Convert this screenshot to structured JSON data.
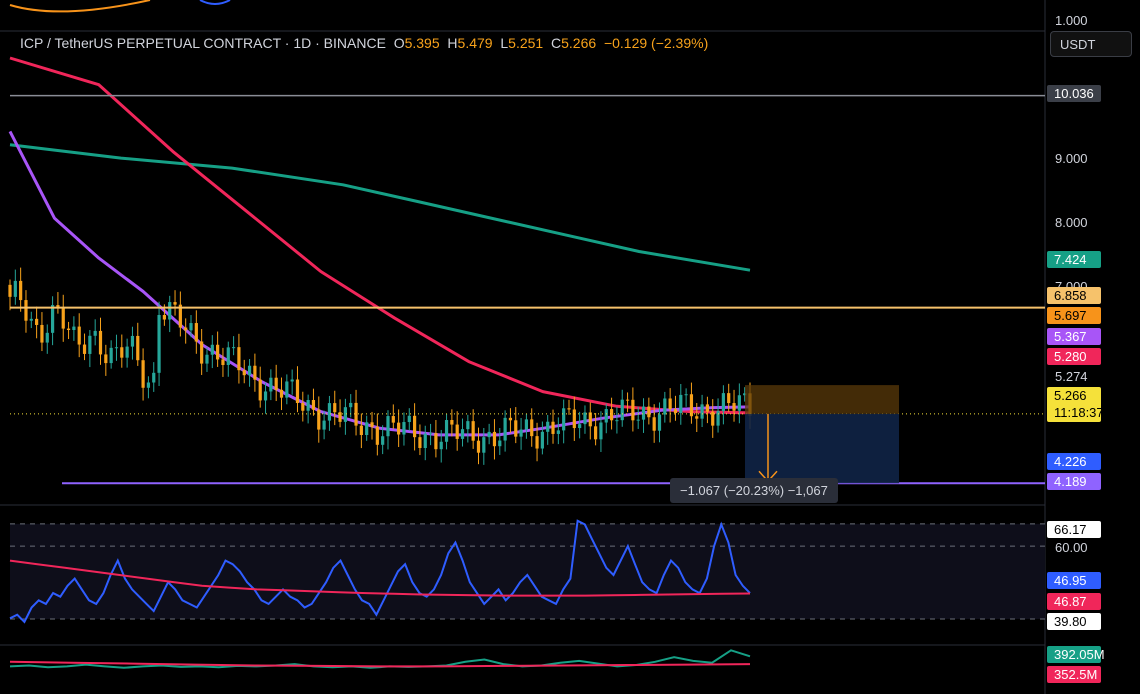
{
  "header": {
    "symbol": "ICP / TetherUS PERPETUAL CONTRACT · 1D · BINANCE",
    "open_label": "O",
    "open": "5.395",
    "high_label": "H",
    "high": "5.479",
    "low_label": "L",
    "low": "5.251",
    "close_label": "C",
    "close": "5.266",
    "change": "−0.129 (−2.39%)"
  },
  "currency_button": "USDT",
  "price_axis": {
    "top_label": "1.000",
    "ticks": [
      "9.000",
      "8.000",
      "7.000"
    ],
    "labels": {
      "resistance": "10.036",
      "ma200": "7.424",
      "horizontal_line": "6.858",
      "position_top": "5.697",
      "ma_purple": "5.367",
      "ma_red": "5.280",
      "last_high": "5.274",
      "current_price": "5.266",
      "countdown": "11:18:37",
      "target": "4.226",
      "support": "4.189"
    }
  },
  "measure_tooltip": "−1.067 (−20.23%) −1,067",
  "rsi_axis": {
    "upper": "66.17",
    "level60": "60.00",
    "rsi": "46.95",
    "rsi_ma": "46.87",
    "lower": "39.80"
  },
  "volume_axis": {
    "vol": "392.05M",
    "vol_ma": "352.5M"
  },
  "colors": {
    "up": "#26a69a",
    "down": "#f7a21b",
    "ma_short": "#a855f7",
    "ma_mid": "#f0265a",
    "ma_long": "#16a086",
    "horizontal": "#f6c26b",
    "support": "#8f63ff",
    "rsi": "#2f5dff"
  },
  "chart_data": {
    "type": "candlestick",
    "title": "ICP / TetherUS PERPETUAL CONTRACT · 1D · BINANCE",
    "ylim": [
      3.9,
      10.6
    ],
    "horizontal_levels": [
      10.036,
      6.858,
      4.226
    ],
    "moving_averages": [
      {
        "name": "ma_long",
        "points": [
          [
            0,
            9.3
          ],
          [
            15,
            9.1
          ],
          [
            30,
            8.95
          ],
          [
            45,
            8.7
          ],
          [
            55,
            8.45
          ],
          [
            65,
            8.2
          ],
          [
            75,
            7.95
          ],
          [
            85,
            7.7
          ],
          [
            100,
            7.42
          ]
        ]
      },
      {
        "name": "ma_mid",
        "points": [
          [
            0,
            10.6
          ],
          [
            12,
            10.2
          ],
          [
            22,
            9.2
          ],
          [
            32,
            8.3
          ],
          [
            42,
            7.4
          ],
          [
            52,
            6.7
          ],
          [
            62,
            6.05
          ],
          [
            72,
            5.6
          ],
          [
            82,
            5.38
          ],
          [
            92,
            5.3
          ],
          [
            100,
            5.28
          ]
        ]
      },
      {
        "name": "ma_short",
        "points": [
          [
            0,
            9.5
          ],
          [
            6,
            8.2
          ],
          [
            12,
            7.6
          ],
          [
            18,
            7.1
          ],
          [
            26,
            6.3
          ],
          [
            34,
            5.75
          ],
          [
            42,
            5.3
          ],
          [
            50,
            5.05
          ],
          [
            58,
            4.95
          ],
          [
            66,
            4.95
          ],
          [
            72,
            5.05
          ],
          [
            80,
            5.2
          ],
          [
            88,
            5.32
          ],
          [
            95,
            5.36
          ],
          [
            100,
            5.37
          ]
        ]
      }
    ],
    "position_tool": {
      "entry": 5.266,
      "stop": 5.697,
      "target": 4.226,
      "change": "−1.067 (−20.23%) −1,067"
    },
    "rsi": {
      "levels": [
        66.17,
        60.0,
        39.8
      ],
      "values": [
        40,
        41,
        39,
        43,
        45,
        44,
        47,
        46,
        49,
        51,
        48,
        45,
        44,
        47,
        52,
        56,
        51,
        48,
        46,
        44,
        42,
        46,
        50,
        48,
        45,
        44,
        43,
        46,
        49,
        52,
        56,
        55,
        53,
        50,
        48,
        45,
        44,
        46,
        48,
        46,
        45,
        43,
        44,
        47,
        50,
        54,
        56,
        52,
        48,
        45,
        44,
        41,
        45,
        49,
        53,
        55,
        50,
        47,
        46,
        48,
        52,
        58,
        61,
        56,
        50,
        47,
        44,
        46,
        48,
        45,
        47,
        50,
        52,
        49,
        46,
        45,
        44,
        48,
        51,
        67,
        66,
        62,
        58,
        54,
        52,
        56,
        60,
        55,
        50,
        48,
        47,
        52,
        56,
        54,
        50,
        48,
        47,
        51,
        60,
        66,
        61,
        52,
        49,
        47
      ],
      "ma": [
        56,
        55,
        54,
        53,
        52,
        51,
        50,
        49,
        48.5,
        48,
        47.8,
        47.5,
        47.2,
        47,
        46.8,
        46.6,
        46.5,
        46.4,
        46.3,
        46.3,
        46.3,
        46.3,
        46.4,
        46.5,
        46.6,
        46.7,
        46.8,
        46.87
      ]
    },
    "volume": {
      "values": [
        0.6,
        0.62,
        0.58,
        0.6,
        0.64,
        0.6,
        0.57,
        0.6,
        0.62,
        0.59,
        0.6,
        0.58,
        0.61,
        0.6,
        0.62,
        0.65,
        0.6,
        0.58,
        0.6,
        0.57,
        0.6,
        0.59,
        0.6,
        0.62,
        0.7,
        0.75,
        0.65,
        0.6,
        0.62,
        0.68,
        0.72,
        0.66,
        0.6,
        0.63,
        0.7,
        0.8,
        0.72,
        0.68,
        0.95,
        0.82
      ],
      "ma": [
        0.7,
        0.68,
        0.66,
        0.64,
        0.62,
        0.61,
        0.6,
        0.6,
        0.61,
        0.62,
        0.63,
        0.64,
        0.65
      ]
    }
  }
}
